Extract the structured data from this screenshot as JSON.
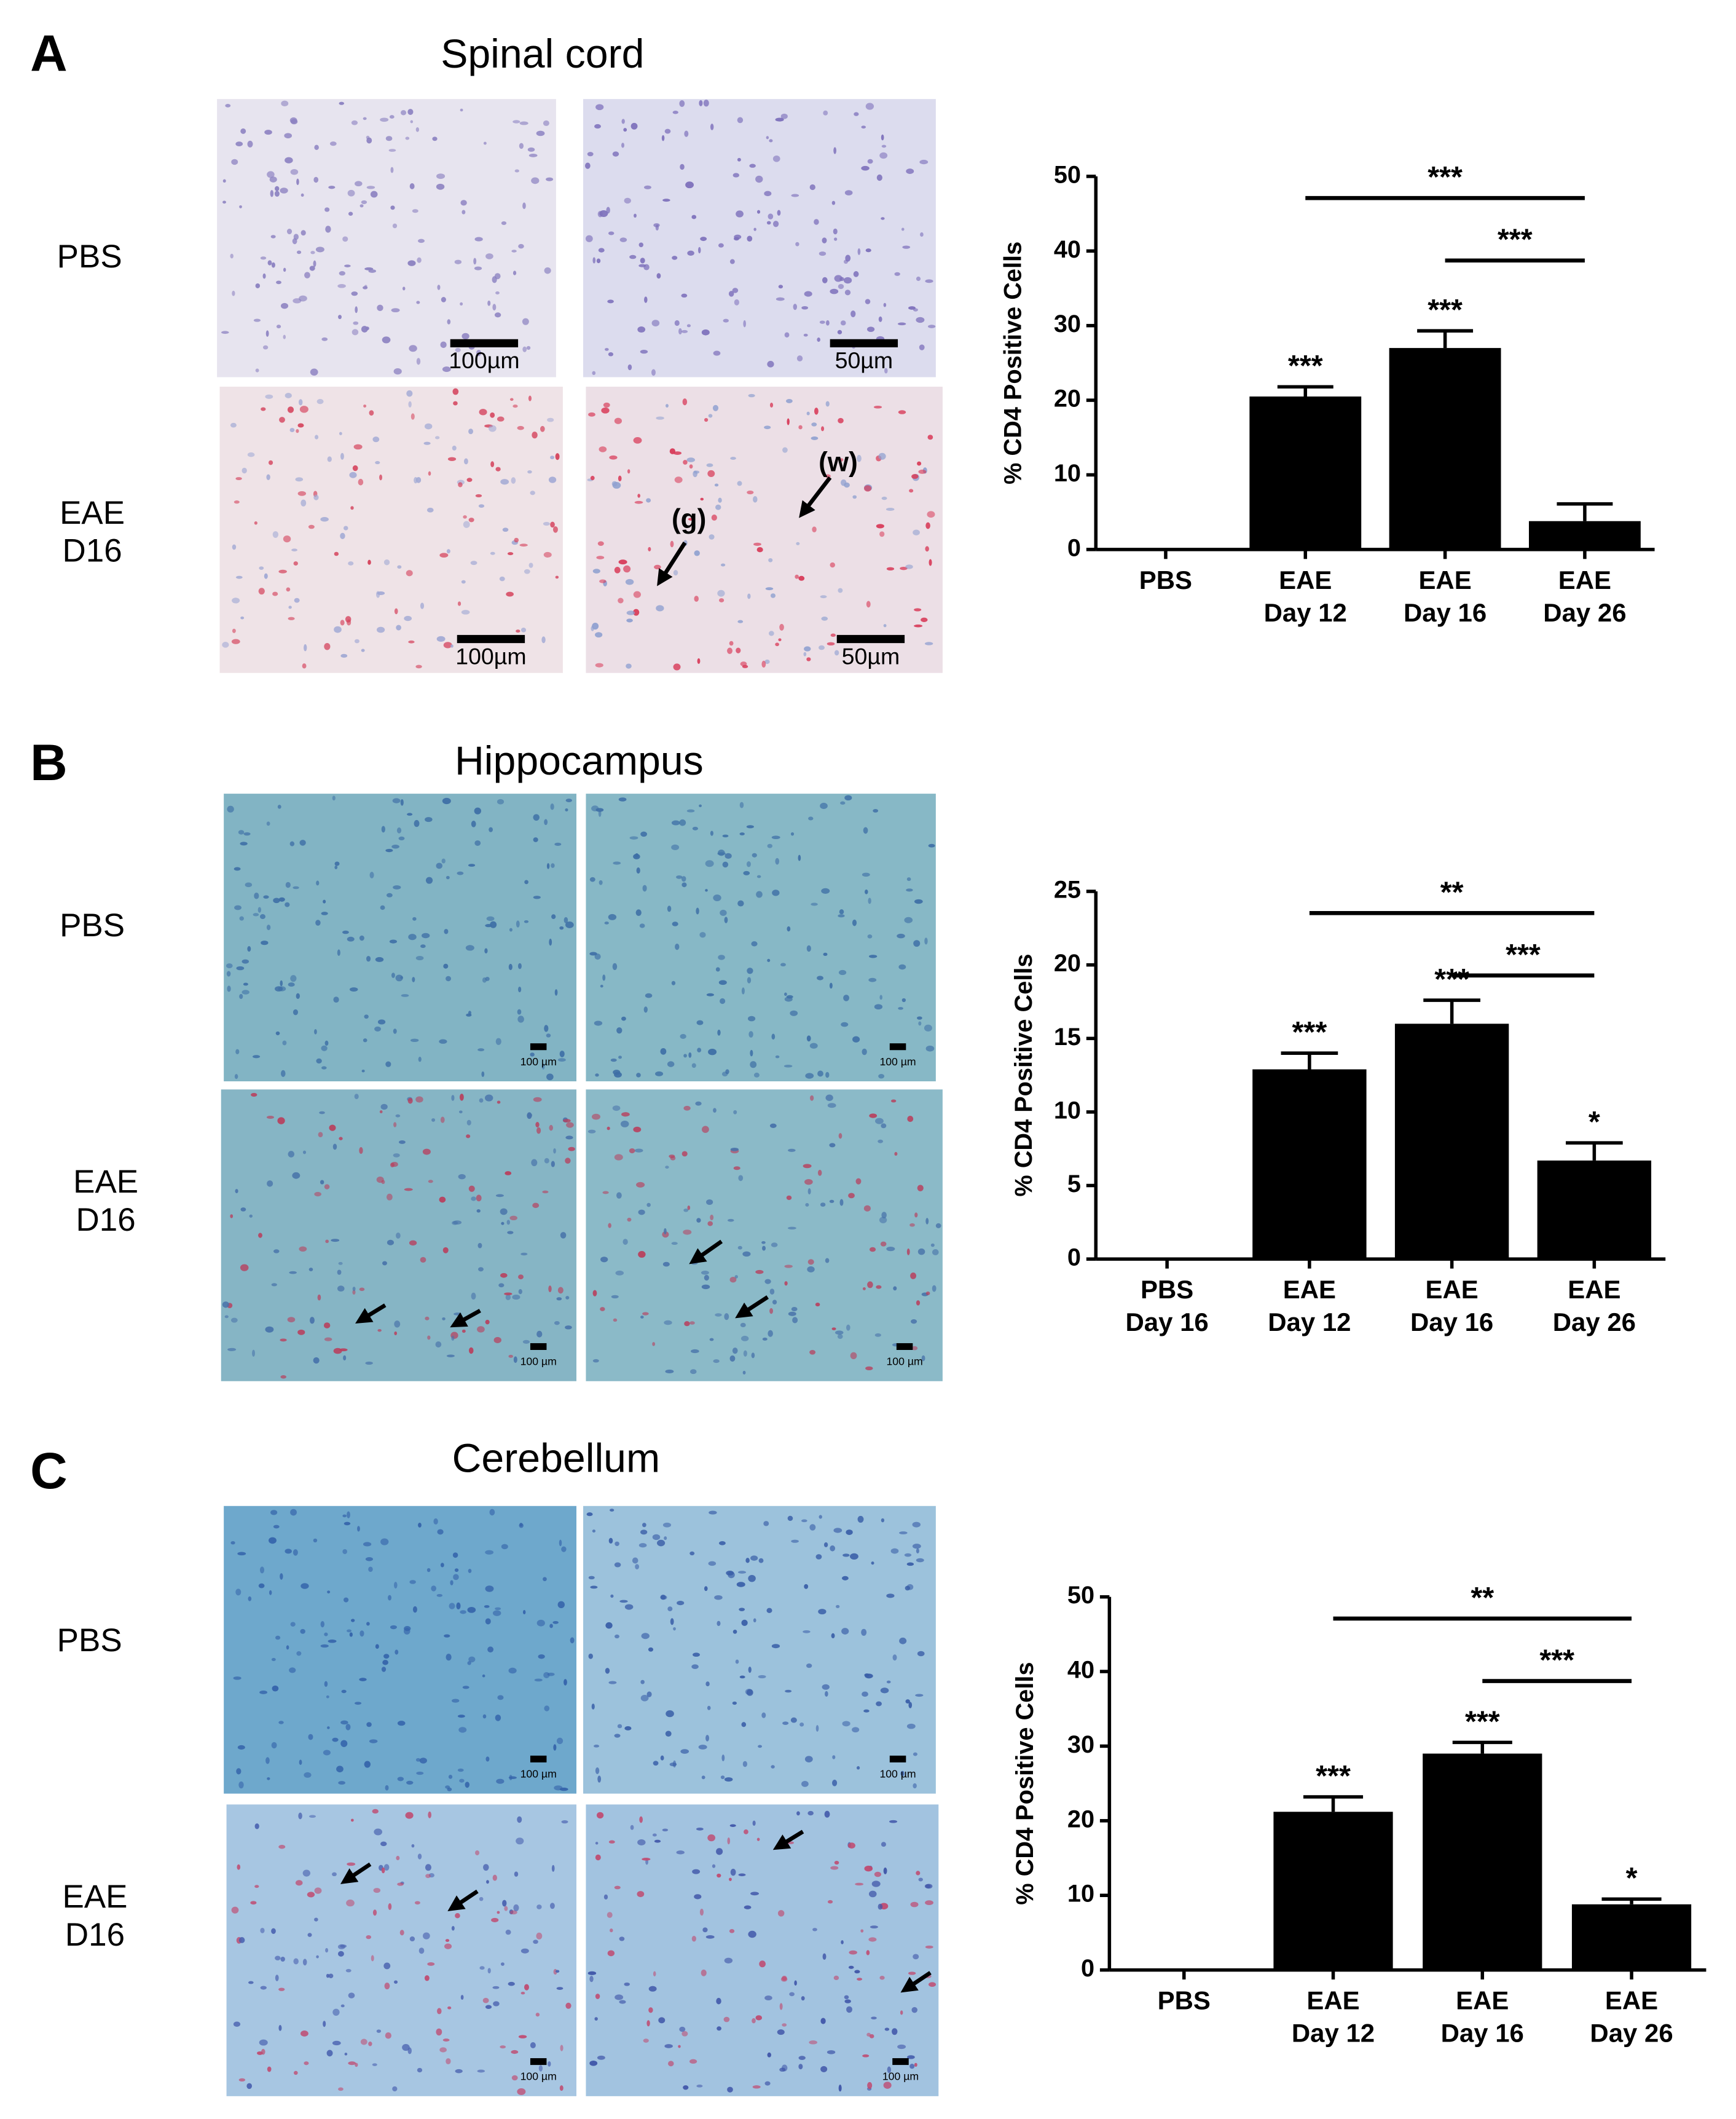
{
  "panels": [
    {
      "letter": "A",
      "title": "Spinal cord",
      "row_labels": [
        "PBS",
        "EAE\nD16"
      ],
      "scale_labels": [
        "100µm",
        "50µm",
        "100µm",
        "50µm"
      ],
      "arrow_labels": [
        "(g)",
        "(w)"
      ]
    },
    {
      "letter": "B",
      "title": "Hippocampus",
      "row_labels": [
        "PBS",
        "EAE\nD16"
      ],
      "scale_labels": [
        "100 µm",
        "100 µm",
        "100 µm",
        "100 µm"
      ]
    },
    {
      "letter": "C",
      "title": "Cerebellum",
      "row_labels": [
        "PBS",
        "EAE\nD16"
      ],
      "scale_labels": [
        "100 µm",
        "100 µm",
        "100 µm",
        "100 µm"
      ]
    }
  ],
  "chart_data": [
    {
      "type": "bar",
      "y_label": "% CD4 Positive Cells",
      "categories": [
        "PBS",
        "EAE\nDay 12",
        "EAE\nDay 16",
        "EAE\nDay 26"
      ],
      "values": [
        0,
        20.5,
        27,
        3.8
      ],
      "errors": [
        0,
        1.3,
        2.3,
        2.3
      ],
      "color": "#000000",
      "significance": [
        null,
        "***",
        "***",
        null
      ],
      "comparisons": [
        {
          "from": "EAE\nDay 12",
          "to": "EAE\nDay 26",
          "label": "***"
        },
        {
          "from": "EAE\nDay 16",
          "to": "EAE\nDay 26",
          "label": "***"
        }
      ],
      "ylim": [
        0,
        50
      ],
      "yticks": [
        0,
        10,
        20,
        30,
        40,
        50
      ]
    },
    {
      "type": "bar",
      "y_label": "% CD4 Positive Cells",
      "categories": [
        "PBS\nDay 16",
        "EAE\nDay 12",
        "EAE\nDay 16",
        "EAE\nDay 26"
      ],
      "values": [
        0,
        12.9,
        16,
        6.7
      ],
      "errors": [
        0,
        1.1,
        1.6,
        1.2
      ],
      "color": "#000000",
      "significance": [
        null,
        "***",
        "***",
        "*"
      ],
      "comparisons": [
        {
          "from": "EAE\nDay 12",
          "to": "EAE\nDay 26",
          "label": "**"
        },
        {
          "from": "EAE\nDay 16",
          "to": "EAE\nDay 26",
          "label": "***"
        }
      ],
      "ylim": [
        0,
        25
      ],
      "yticks": [
        0,
        5,
        10,
        15,
        20,
        25
      ]
    },
    {
      "type": "bar",
      "y_label": "% CD4 Positive Cells",
      "categories": [
        "PBS",
        "EAE\nDay 12",
        "EAE\nDay 16",
        "EAE\nDay 26"
      ],
      "values": [
        0,
        21.2,
        29,
        8.8
      ],
      "errors": [
        0,
        2,
        1.5,
        0.7
      ],
      "color": "#000000",
      "significance": [
        null,
        "***",
        "***",
        "*"
      ],
      "comparisons": [
        {
          "from": "EAE\nDay 12",
          "to": "EAE\nDay 26",
          "label": "**"
        },
        {
          "from": "EAE\nDay 16",
          "to": "EAE\nDay 26",
          "label": "***"
        }
      ],
      "ylim": [
        0,
        50
      ],
      "yticks": [
        0,
        10,
        20,
        30,
        40,
        50
      ]
    }
  ]
}
